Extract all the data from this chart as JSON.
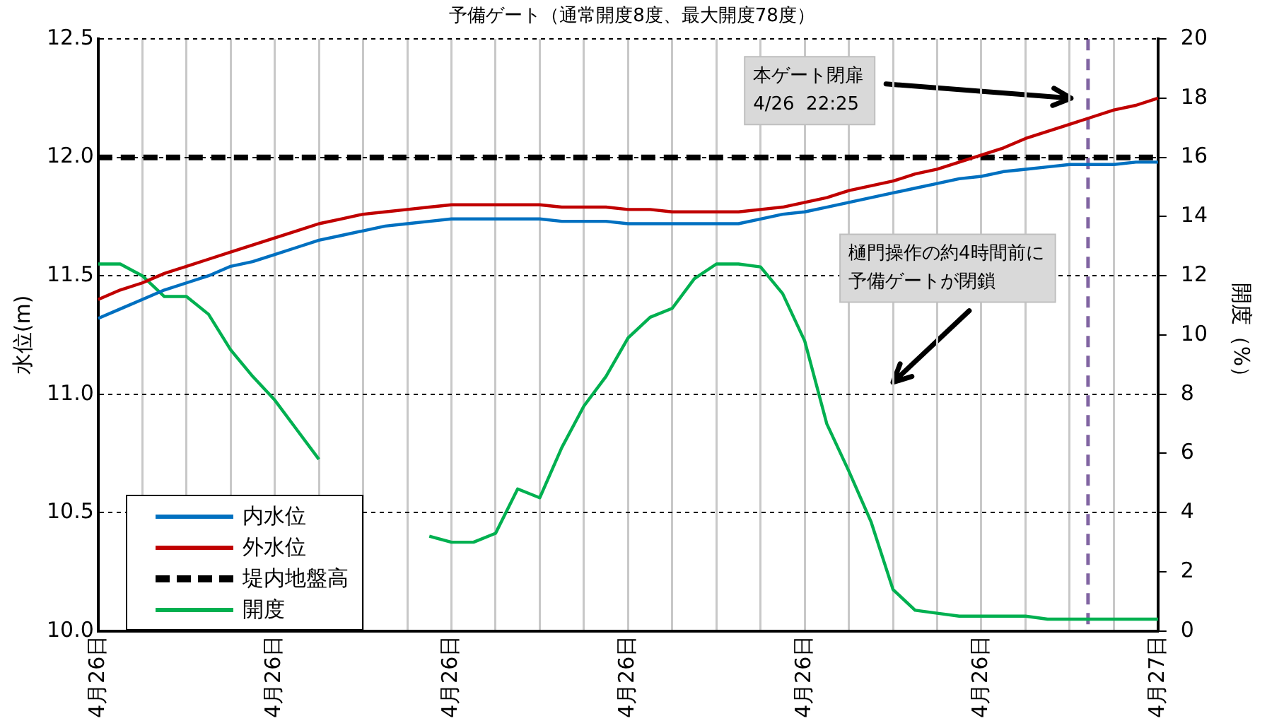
{
  "chart_data": {
    "type": "line",
    "title": "予備ゲート（通常開度8度、最大開度78度）",
    "ylabel": "水位(m)",
    "y2label": "開度（%）",
    "categories": [
      "4月26日",
      null,
      null,
      null,
      null,
      null,
      null,
      null,
      "4月26日",
      null,
      null,
      null,
      null,
      null,
      null,
      null,
      "4月26日",
      null,
      null,
      null,
      null,
      null,
      null,
      null,
      "4月26日",
      null,
      null,
      null,
      null,
      null,
      null,
      null,
      "4月26日",
      null,
      null,
      null,
      null,
      null,
      null,
      null,
      "4月26日",
      null,
      null,
      null,
      null,
      null,
      null,
      null,
      "4月27日"
    ],
    "ylim": [
      10,
      12.5
    ],
    "yticks": [
      {
        "value": 10,
        "label": "10.0"
      },
      {
        "value": 10.5,
        "label": "10.5"
      },
      {
        "value": 11,
        "label": "11.0"
      },
      {
        "value": 11.5,
        "label": "11.5"
      },
      {
        "value": 12,
        "label": "12.0"
      },
      {
        "value": 12.5,
        "label": "12.5"
      }
    ],
    "y2lim": [
      0,
      20
    ],
    "y2ticks": [
      0,
      2,
      4,
      6,
      8,
      10,
      12,
      14,
      16,
      18,
      20
    ],
    "grid": true,
    "legend": "bottom left",
    "marker": "none",
    "series": [
      {
        "name": "内水位",
        "color": "#0070c0",
        "values": [
          11.32,
          11.36,
          11.4,
          11.44,
          11.47,
          11.5,
          11.54,
          11.56,
          11.59,
          11.62,
          11.65,
          11.67,
          11.69,
          11.71,
          11.72,
          11.73,
          11.74,
          11.74,
          11.74,
          11.74,
          11.74,
          11.73,
          11.73,
          11.73,
          11.72,
          11.72,
          11.72,
          11.72,
          11.72,
          11.72,
          11.74,
          11.76,
          11.77,
          11.79,
          11.81,
          11.83,
          11.85,
          11.87,
          11.89,
          11.91,
          11.92,
          11.94,
          11.95,
          11.96,
          11.97,
          11.97,
          11.97,
          11.98,
          11.98
        ]
      },
      {
        "name": "外水位",
        "color": "#c00000",
        "values": [
          11.4,
          11.44,
          11.47,
          11.51,
          11.54,
          11.57,
          11.6,
          11.63,
          11.66,
          11.69,
          11.72,
          11.74,
          11.76,
          11.77,
          11.78,
          11.79,
          11.8,
          11.8,
          11.8,
          11.8,
          11.8,
          11.79,
          11.79,
          11.79,
          11.78,
          11.78,
          11.77,
          11.77,
          11.77,
          11.77,
          11.78,
          11.79,
          11.81,
          11.83,
          11.86,
          11.88,
          11.9,
          11.93,
          11.95,
          11.98,
          12.01,
          12.04,
          12.08,
          12.11,
          12.14,
          12.17,
          12.2,
          12.22,
          12.25
        ]
      },
      {
        "name": "堤内地盤高",
        "color": "#000000",
        "line_style": "dashed",
        "values": [
          12.0,
          12.0,
          12.0,
          12.0,
          12.0,
          12.0,
          12.0,
          12.0,
          12.0,
          12.0,
          12.0,
          12.0,
          12.0,
          12.0,
          12.0,
          12.0,
          12.0,
          12.0,
          12.0,
          12.0,
          12.0,
          12.0,
          12.0,
          12.0,
          12.0,
          12.0,
          12.0,
          12.0,
          12.0,
          12.0,
          12.0,
          12.0,
          12.0,
          12.0,
          12.0,
          12.0,
          12.0,
          12.0,
          12.0,
          12.0,
          12.0,
          12.0,
          12.0,
          12.0,
          12.0,
          12.0,
          12.0,
          12.0,
          12.0
        ]
      },
      {
        "name": "開度",
        "color": "#00b050",
        "axis": "y2",
        "values": [
          12.4,
          12.4,
          12.0,
          11.3,
          11.3,
          10.7,
          9.5,
          8.6,
          7.8,
          6.8,
          5.8,
          null,
          null,
          null,
          null,
          3.2,
          3.0,
          3.0,
          3.3,
          4.8,
          4.5,
          6.2,
          7.6,
          8.6,
          9.9,
          10.6,
          10.9,
          11.9,
          12.4,
          12.4,
          12.3,
          11.4,
          9.8,
          7.0,
          5.4,
          3.7,
          1.4,
          0.7,
          0.6,
          0.5,
          0.5,
          0.5,
          0.5,
          0.4,
          0.4,
          0.4,
          0.4,
          0.4,
          0.4
        ]
      }
    ],
    "annotations": [
      "本ゲート閉扉",
      "4/26  22:25",
      "樋門操作の約4時間前に予備ゲートが閉鎖"
    ]
  }
}
